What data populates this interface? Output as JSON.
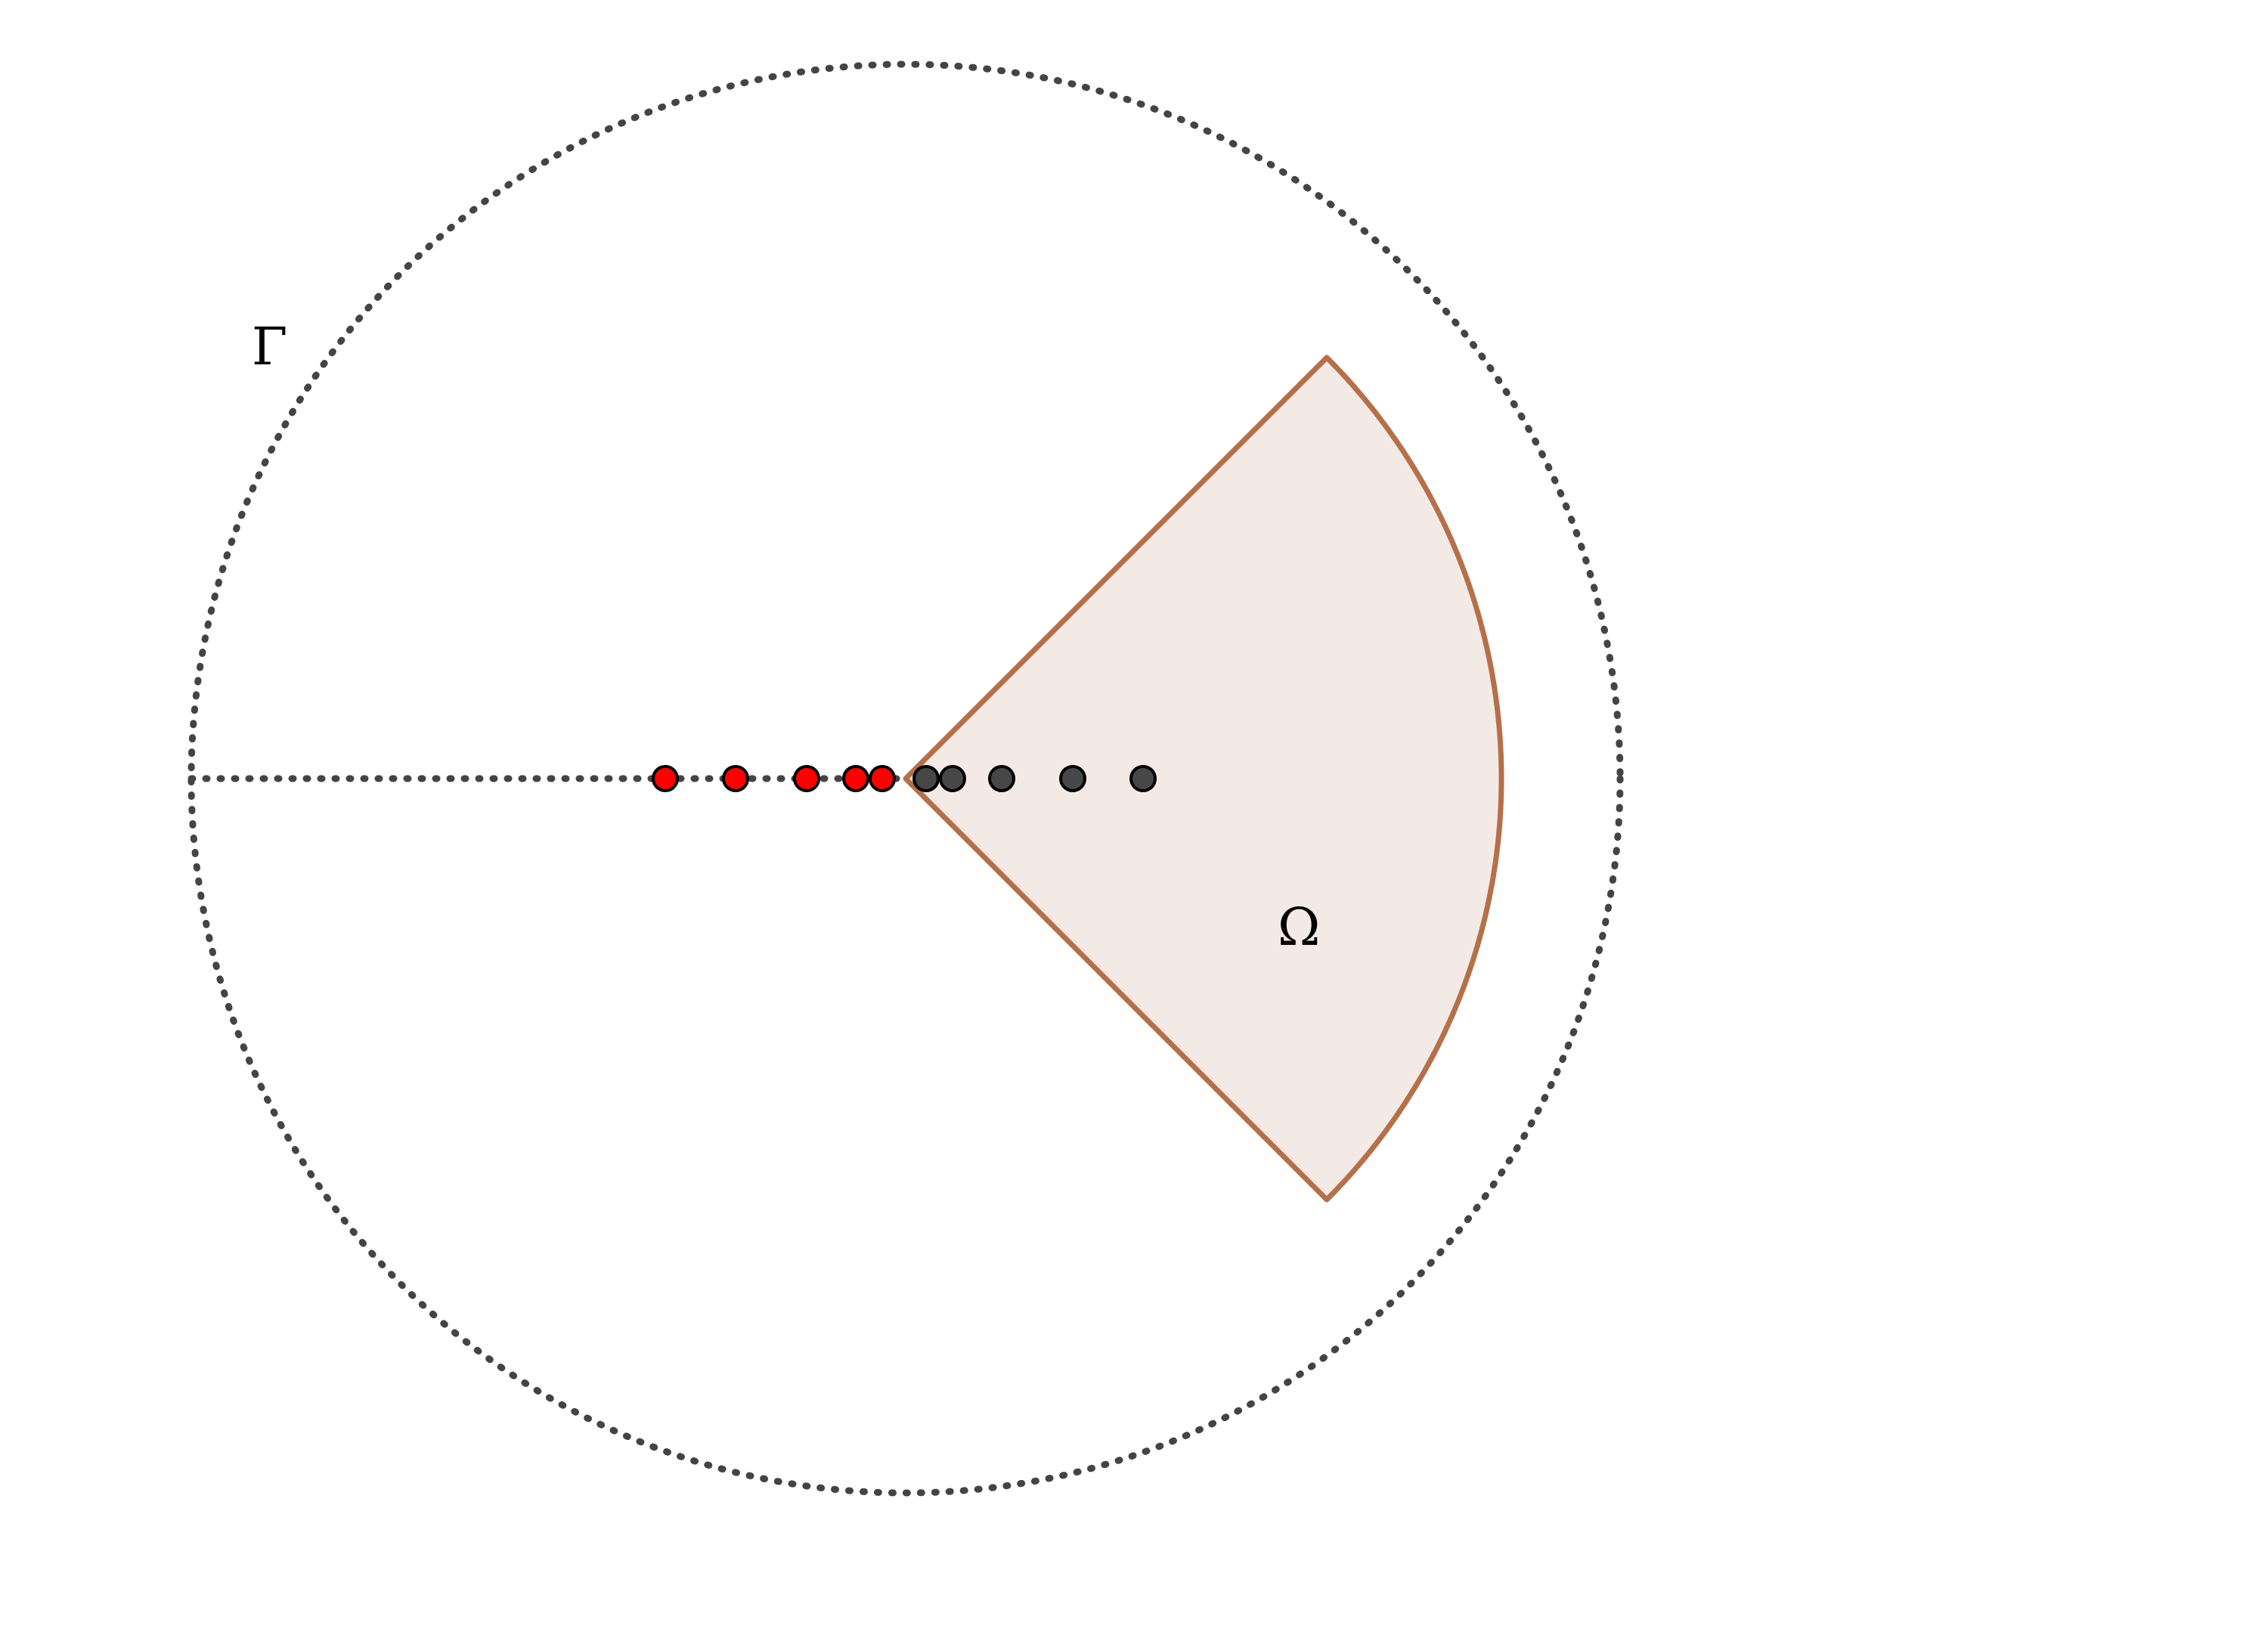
{
  "labels": {
    "outer_boundary": "Γ",
    "domain": "Ω"
  },
  "colors": {
    "outer_boundary": "#444444",
    "cut_line": "#444444",
    "sector_fill": "#f4eae5",
    "sector_stroke": "#b5704a",
    "left_points": "#ff0000",
    "right_points": "#474747"
  },
  "points": {
    "left_count": 5,
    "right_count": 5
  }
}
